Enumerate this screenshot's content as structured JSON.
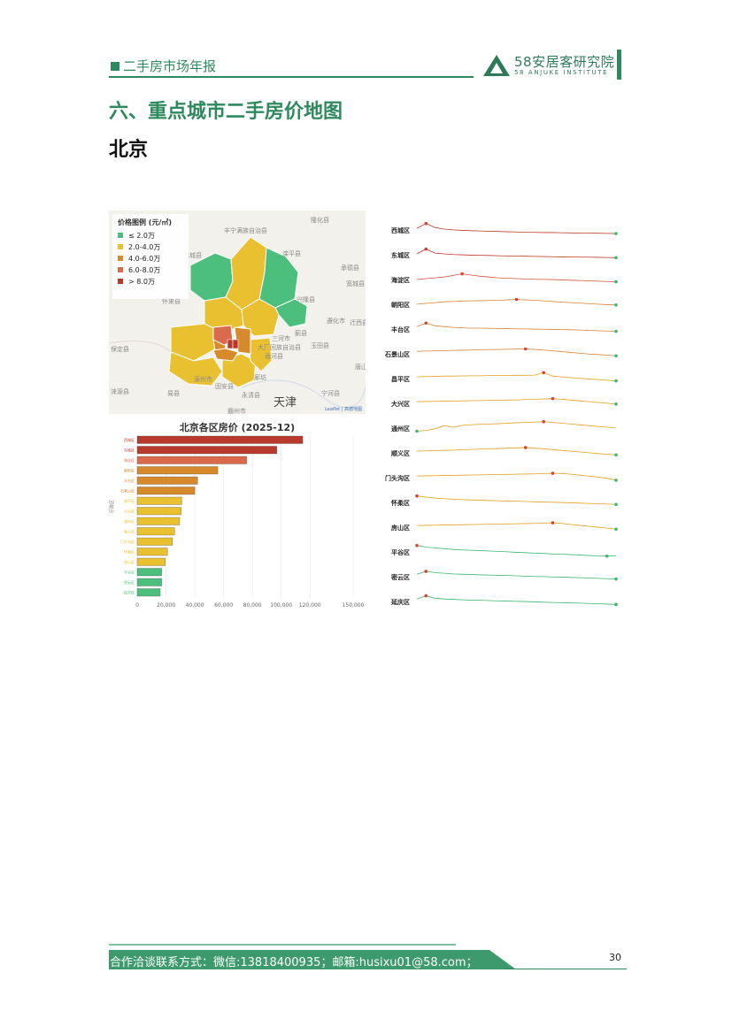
{
  "header": {
    "report_title": "二手房市场年报",
    "logo_cn": "58安居客研究院",
    "logo_en": "58 ANJUKE INSTITUTE"
  },
  "section_title": "六、重点城市二手房价地图",
  "city": "北京",
  "map": {
    "legend_title": "价格图例 (元/㎡)",
    "legend": [
      {
        "label": "≤ 2.0万",
        "color": "#4cbf7c"
      },
      {
        "label": "2.0-4.0万",
        "color": "#e8c030"
      },
      {
        "label": "4.0-6.0万",
        "color": "#d78a2c"
      },
      {
        "label": "6.0-8.0万",
        "color": "#d96a4c"
      },
      {
        "label": "> 8.0万",
        "color": "#b83a2c"
      }
    ],
    "place_labels": [
      "隆化县",
      "丰宁满族自治县",
      "赤城县",
      "滦平县",
      "承德县",
      "宽城县",
      "怀来县",
      "兴隆县",
      "迁西县",
      "遵化市",
      "三河市",
      "蓟县",
      "玉田县",
      "大厂回族自治县",
      "香河县",
      "唐山",
      "涿州市",
      "固安县",
      "廊坊",
      "永清县",
      "涞源县",
      "易县",
      "霸州市",
      "宁河县",
      "保定县"
    ],
    "big_label": "天津",
    "attribution": "Leaflet | 高德地图"
  },
  "chart_data": [
    {
      "type": "bar",
      "title": "北京各区房价 (2025-12)",
      "orientation": "horizontal",
      "categories": [
        "西城区",
        "东城区",
        "海淀区",
        "朝阳区",
        "丰台区",
        "石景山区",
        "昌平区",
        "大兴区",
        "通州区",
        "顺义区",
        "门头沟区",
        "怀柔区",
        "房山区",
        "平谷区",
        "密云区",
        "延庆区"
      ],
      "values": [
        115000,
        97000,
        76000,
        56000,
        42000,
        40000,
        31000,
        30500,
        29500,
        26000,
        24500,
        21000,
        19500,
        17000,
        17000,
        16000
      ],
      "colors": [
        "#b83a2c",
        "#b83a2c",
        "#d96a4c",
        "#d78a2c",
        "#d78a2c",
        "#d78a2c",
        "#e8c030",
        "#e8c030",
        "#e8c030",
        "#e8c030",
        "#e8c030",
        "#e8c030",
        "#e8c030",
        "#4cbf7c",
        "#4cbf7c",
        "#4cbf7c"
      ],
      "xlim": [
        0,
        150000
      ],
      "xticks": [
        "0",
        "20,000",
        "40,000",
        "60,000",
        "80,000",
        "100,000",
        "120,000",
        "150,000"
      ],
      "ylabel": "行政区"
    },
    {
      "type": "line",
      "layout": "small-multiples",
      "series": [
        {
          "name": "西城区",
          "color": "#c0392b",
          "values": [
            0.55,
            0.85,
            0.6,
            0.5,
            0.45,
            0.42,
            0.4,
            0.38,
            0.36,
            0.35,
            0.33,
            0.32,
            0.3,
            0.29,
            0.28,
            0.28,
            0.27,
            0.26,
            0.25,
            0.25,
            0.24,
            0.23,
            0.22
          ]
        },
        {
          "name": "东城区",
          "color": "#c0392b",
          "values": [
            0.5,
            0.8,
            0.55,
            0.5,
            0.46,
            0.44,
            0.42,
            0.41,
            0.4,
            0.38,
            0.37,
            0.36,
            0.35,
            0.34,
            0.33,
            0.32,
            0.31,
            0.3,
            0.3,
            0.29,
            0.28,
            0.27,
            0.26
          ]
        },
        {
          "name": "海淀区",
          "color": "#d35440",
          "values": [
            0.45,
            0.5,
            0.55,
            0.6,
            0.7,
            0.8,
            0.72,
            0.65,
            0.6,
            0.55,
            0.52,
            0.5,
            0.48,
            0.46,
            0.45,
            0.44,
            0.42,
            0.4,
            0.38,
            0.36,
            0.34,
            0.32,
            0.3
          ]
        },
        {
          "name": "朝阳区",
          "color": "#d9823a",
          "values": [
            0.45,
            0.5,
            0.55,
            0.6,
            0.62,
            0.65,
            0.66,
            0.67,
            0.68,
            0.7,
            0.72,
            0.75,
            0.72,
            0.7,
            0.66,
            0.62,
            0.58,
            0.55,
            0.52,
            0.48,
            0.45,
            0.42,
            0.4
          ]
        },
        {
          "name": "丰台区",
          "color": "#d9823a",
          "values": [
            0.6,
            0.82,
            0.65,
            0.6,
            0.55,
            0.52,
            0.5,
            0.5,
            0.49,
            0.48,
            0.47,
            0.46,
            0.45,
            0.44,
            0.43,
            0.42,
            0.41,
            0.4,
            0.38,
            0.36,
            0.34,
            0.32,
            0.3
          ]
        },
        {
          "name": "石景山区",
          "color": "#d9823a",
          "values": [
            0.6,
            0.62,
            0.63,
            0.64,
            0.66,
            0.67,
            0.68,
            0.7,
            0.71,
            0.72,
            0.73,
            0.74,
            0.75,
            0.72,
            0.68,
            0.63,
            0.58,
            0.53,
            0.48,
            0.43,
            0.4,
            0.36,
            0.32
          ]
        },
        {
          "name": "昌平区",
          "color": "#e0a020",
          "values": [
            0.55,
            0.57,
            0.58,
            0.6,
            0.6,
            0.61,
            0.62,
            0.62,
            0.63,
            0.63,
            0.64,
            0.65,
            0.65,
            0.66,
            0.82,
            0.6,
            0.55,
            0.5,
            0.46,
            0.42,
            0.38,
            0.34,
            0.3
          ]
        },
        {
          "name": "大兴区",
          "color": "#e0a020",
          "values": [
            0.55,
            0.56,
            0.57,
            0.58,
            0.59,
            0.6,
            0.61,
            0.62,
            0.63,
            0.64,
            0.65,
            0.66,
            0.68,
            0.7,
            0.72,
            0.74,
            0.7,
            0.65,
            0.6,
            0.55,
            0.5,
            0.45,
            0.4
          ]
        },
        {
          "name": "通州区",
          "color": "#e0a020",
          "values": [
            0.25,
            0.3,
            0.4,
            0.6,
            0.5,
            0.62,
            0.66,
            0.68,
            0.7,
            0.72,
            0.75,
            0.78,
            0.8,
            0.82,
            0.85,
            0.8,
            0.75,
            0.7,
            0.65,
            0.6,
            0.55,
            0.5,
            0.45
          ]
        },
        {
          "name": "顺义区",
          "color": "#e0a020",
          "values": [
            0.55,
            0.57,
            0.59,
            0.6,
            0.62,
            0.64,
            0.66,
            0.68,
            0.7,
            0.72,
            0.74,
            0.76,
            0.78,
            0.74,
            0.7,
            0.65,
            0.6,
            0.55,
            0.5,
            0.45,
            0.4,
            0.36,
            0.32
          ]
        },
        {
          "name": "门头沟区",
          "color": "#e0a020",
          "values": [
            0.55,
            0.56,
            0.57,
            0.58,
            0.59,
            0.6,
            0.61,
            0.62,
            0.63,
            0.64,
            0.65,
            0.66,
            0.67,
            0.68,
            0.7,
            0.72,
            0.7,
            0.66,
            0.6,
            0.54,
            0.48,
            0.4,
            0.28
          ]
        },
        {
          "name": "怀柔区",
          "color": "#e0a020",
          "values": [
            0.85,
            0.78,
            0.72,
            0.68,
            0.65,
            0.62,
            0.6,
            0.58,
            0.56,
            0.55,
            0.53,
            0.52,
            0.5,
            0.48,
            0.47,
            0.45,
            0.44,
            0.42,
            0.4,
            0.38,
            0.36,
            0.34,
            0.32
          ]
        },
        {
          "name": "房山区",
          "color": "#e0a020",
          "values": [
            0.55,
            0.56,
            0.57,
            0.58,
            0.59,
            0.6,
            0.61,
            0.62,
            0.63,
            0.64,
            0.65,
            0.66,
            0.67,
            0.68,
            0.7,
            0.72,
            0.68,
            0.62,
            0.56,
            0.5,
            0.44,
            0.38,
            0.32
          ]
        },
        {
          "name": "平谷区",
          "color": "#3fb56f",
          "values": [
            0.85,
            0.75,
            0.7,
            0.65,
            0.6,
            0.57,
            0.55,
            0.53,
            0.5,
            0.48,
            0.45,
            0.42,
            0.4,
            0.37,
            0.35,
            0.32,
            0.3,
            0.28,
            0.25,
            0.22,
            0.2,
            0.18,
            0.2
          ]
        },
        {
          "name": "密云区",
          "color": "#3fb56f",
          "values": [
            0.6,
            0.78,
            0.7,
            0.66,
            0.62,
            0.6,
            0.58,
            0.56,
            0.55,
            0.53,
            0.52,
            0.5,
            0.48,
            0.46,
            0.45,
            0.43,
            0.42,
            0.4,
            0.38,
            0.36,
            0.34,
            0.32,
            0.3
          ]
        },
        {
          "name": "延庆区",
          "color": "#3fb56f",
          "values": [
            0.6,
            0.8,
            0.65,
            0.6,
            0.58,
            0.55,
            0.53,
            0.52,
            0.5,
            0.48,
            0.47,
            0.45,
            0.44,
            0.42,
            0.4,
            0.38,
            0.37,
            0.35,
            0.34,
            0.32,
            0.3,
            0.28,
            0.26
          ]
        }
      ]
    }
  ],
  "footer": {
    "contact": "合作洽谈联系方式：微信:13818400935；邮箱:husixu01@58.com；",
    "page_number": "30"
  },
  "colors": {
    "brand_green": "#2e8a5e"
  }
}
